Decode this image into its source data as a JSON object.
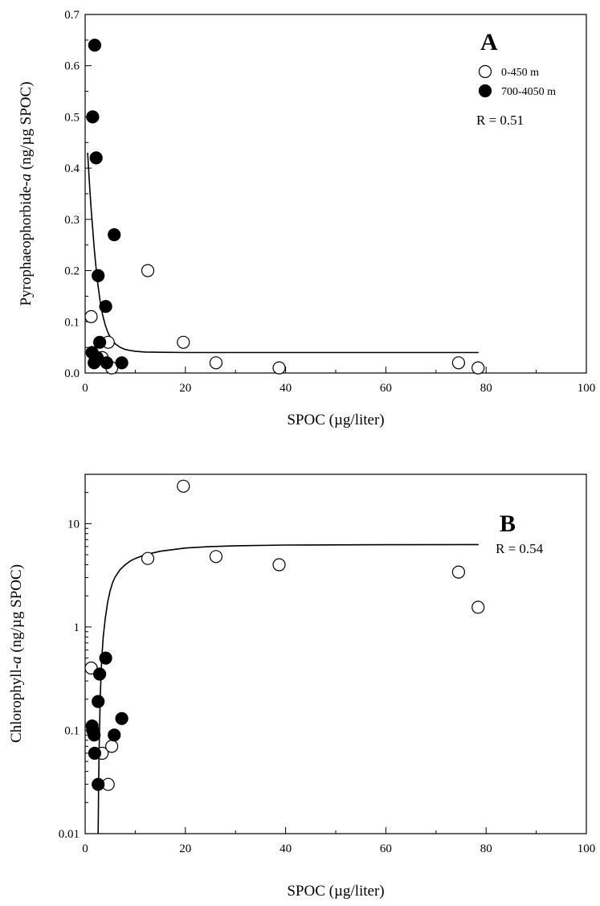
{
  "chart_data": [
    {
      "type": "scatter",
      "panel_label": "A",
      "annotation": "R = 0.51",
      "xlabel": "SPOC (µg/liter)",
      "ylabel_prefix": "Pyrophaeophorbide-",
      "ylabel_italic": "a",
      "ylabel_suffix": " (ng/µg SPOC)",
      "xlim": [
        0,
        100
      ],
      "ylim": [
        0,
        0.7
      ],
      "x_ticks": [
        "0",
        "20",
        "40",
        "60",
        "80",
        "100"
      ],
      "y_ticks": [
        "0.0",
        "0.1",
        "0.2",
        "0.3",
        "0.4",
        "0.5",
        "0.6",
        "0.7"
      ],
      "grid": false,
      "legend_position": "top-right",
      "series": [
        {
          "name": "0-450 m",
          "marker": "open-circle",
          "points": [
            [
              1.2,
              0.11
            ],
            [
              12.5,
              0.2
            ],
            [
              19.6,
              0.06
            ],
            [
              26.1,
              0.02
            ],
            [
              38.7,
              0.01
            ],
            [
              74.5,
              0.02
            ],
            [
              78.4,
              0.01
            ],
            [
              4.6,
              0.06
            ],
            [
              3.4,
              0.03
            ],
            [
              5.3,
              0.01
            ]
          ]
        },
        {
          "name": "700-4050 m",
          "marker": "filled-circle",
          "points": [
            [
              1.9,
              0.64
            ],
            [
              1.5,
              0.5
            ],
            [
              2.2,
              0.42
            ],
            [
              5.8,
              0.27
            ],
            [
              2.6,
              0.19
            ],
            [
              4.1,
              0.13
            ],
            [
              2.9,
              0.06
            ],
            [
              1.4,
              0.04
            ],
            [
              2.4,
              0.03
            ],
            [
              1.8,
              0.02
            ],
            [
              4.3,
              0.02
            ],
            [
              7.3,
              0.02
            ]
          ]
        }
      ],
      "fit_line": {
        "x": [
          0.5,
          0.8,
          1,
          1.2,
          1.5,
          1.8,
          2.1,
          2.5,
          3,
          3.5,
          4,
          4.5,
          5,
          6,
          7,
          8,
          9,
          10,
          12,
          15,
          20,
          30,
          40,
          60,
          78.5
        ],
        "y": [
          0.43,
          0.38,
          0.35,
          0.32,
          0.282,
          0.245,
          0.213,
          0.176,
          0.14,
          0.113,
          0.094,
          0.08,
          0.07,
          0.057,
          0.05,
          0.046,
          0.044,
          0.0425,
          0.041,
          0.0405,
          0.04,
          0.04,
          0.04,
          0.04,
          0.04
        ]
      }
    },
    {
      "type": "scatter",
      "panel_label": "B",
      "annotation": "R = 0.54",
      "xlabel": "SPOC (µg/liter)",
      "ylabel_prefix": "Chlorophyll-",
      "ylabel_italic": "a",
      "ylabel_suffix": " (ng/µg SPOC)",
      "xlim": [
        0,
        100
      ],
      "ylim": [
        0.01,
        30
      ],
      "y_scale": "log",
      "x_ticks": [
        "0",
        "20",
        "40",
        "60",
        "80",
        "100"
      ],
      "y_ticks": [
        "0.01",
        "0.1",
        "1",
        "10"
      ],
      "grid": false,
      "series": [
        {
          "name": "0-450 m",
          "marker": "open-circle",
          "points": [
            [
              1.2,
              0.4
            ],
            [
              12.5,
              4.6
            ],
            [
              19.6,
              23
            ],
            [
              26.1,
              4.8
            ],
            [
              38.7,
              4.0
            ],
            [
              74.5,
              3.4
            ],
            [
              78.4,
              1.55
            ],
            [
              3.4,
              0.06
            ],
            [
              5.3,
              0.07
            ],
            [
              4.6,
              0.03
            ]
          ]
        },
        {
          "name": "700-4050 m",
          "marker": "filled-circle",
          "points": [
            [
              4.1,
              0.5
            ],
            [
              2.9,
              0.35
            ],
            [
              2.6,
              0.19
            ],
            [
              7.3,
              0.13
            ],
            [
              1.4,
              0.11
            ],
            [
              1.5,
              0.1
            ],
            [
              1.8,
              0.09
            ],
            [
              5.8,
              0.09
            ],
            [
              1.9,
              0.06
            ],
            [
              2.6,
              0.03
            ]
          ]
        }
      ],
      "fit_line": {
        "x": [
          2.6,
          2.7,
          2.8,
          3,
          3.3,
          3.6,
          4,
          4.5,
          5,
          5.5,
          6,
          7,
          8,
          9,
          10,
          12,
          15,
          20,
          25,
          30,
          40,
          60,
          78.5
        ],
        "y": [
          0.01,
          0.03,
          0.07,
          0.2,
          0.48,
          0.8,
          1.2,
          1.75,
          2.25,
          2.7,
          3.05,
          3.6,
          4.0,
          4.35,
          4.6,
          5.0,
          5.4,
          5.8,
          6.0,
          6.1,
          6.2,
          6.25,
          6.27
        ]
      }
    }
  ]
}
